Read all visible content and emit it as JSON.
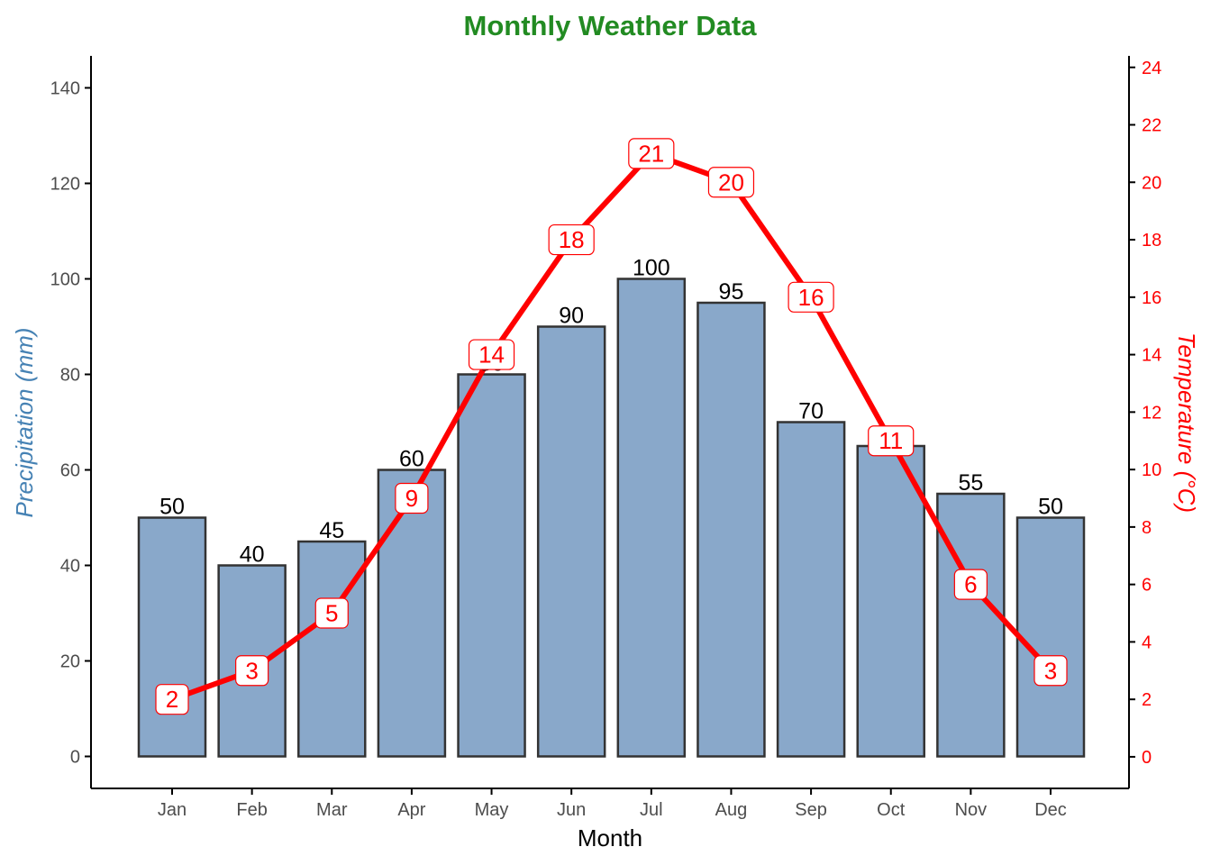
{
  "colors": {
    "title": "#228B22",
    "bar_fill": "#89A8CA",
    "bar_stroke": "#333333",
    "line": "#FF0000",
    "left_axis_title": "#4682B4",
    "right_axis": "#FF0000",
    "axis": "#000000",
    "tick_text": "#4D4D4D"
  },
  "chart_data": {
    "type": "bar",
    "title": "Monthly Weather Data",
    "xlabel": "Month",
    "ylabel": "Precipitation (mm)",
    "y2label": "Temperature (°C)",
    "categories": [
      "Jan",
      "Feb",
      "Mar",
      "Apr",
      "May",
      "Jun",
      "Jul",
      "Aug",
      "Sep",
      "Oct",
      "Nov",
      "Dec"
    ],
    "ylim": [
      -6.7,
      146.7
    ],
    "y_ticks": [
      0,
      20,
      40,
      60,
      80,
      100,
      120,
      140
    ],
    "y2lim": [
      -1.1,
      24.4
    ],
    "y2_ticks": [
      0,
      2,
      4,
      6,
      8,
      10,
      12,
      14,
      16,
      18,
      20,
      22,
      24
    ],
    "grid": false,
    "series": [
      {
        "name": "Precipitation (mm)",
        "type": "bar",
        "axis": "left",
        "values": [
          50,
          40,
          45,
          60,
          80,
          90,
          100,
          95,
          70,
          65,
          55,
          50
        ],
        "labels": [
          "50",
          "40",
          "45",
          "60",
          "80",
          "90",
          "100",
          "95",
          "70",
          "65",
          "55",
          "50"
        ]
      },
      {
        "name": "Temperature (°C)",
        "type": "line",
        "axis": "right",
        "values": [
          2.0,
          3.0,
          5.0,
          9.0,
          14.0,
          18.0,
          21.0,
          20.0,
          16.0,
          11.0,
          6.0,
          3.0
        ],
        "labels": [
          "2",
          "3",
          "5",
          "9",
          "14",
          "18",
          "21",
          "20",
          "16",
          "11",
          "6",
          "3"
        ]
      }
    ]
  }
}
